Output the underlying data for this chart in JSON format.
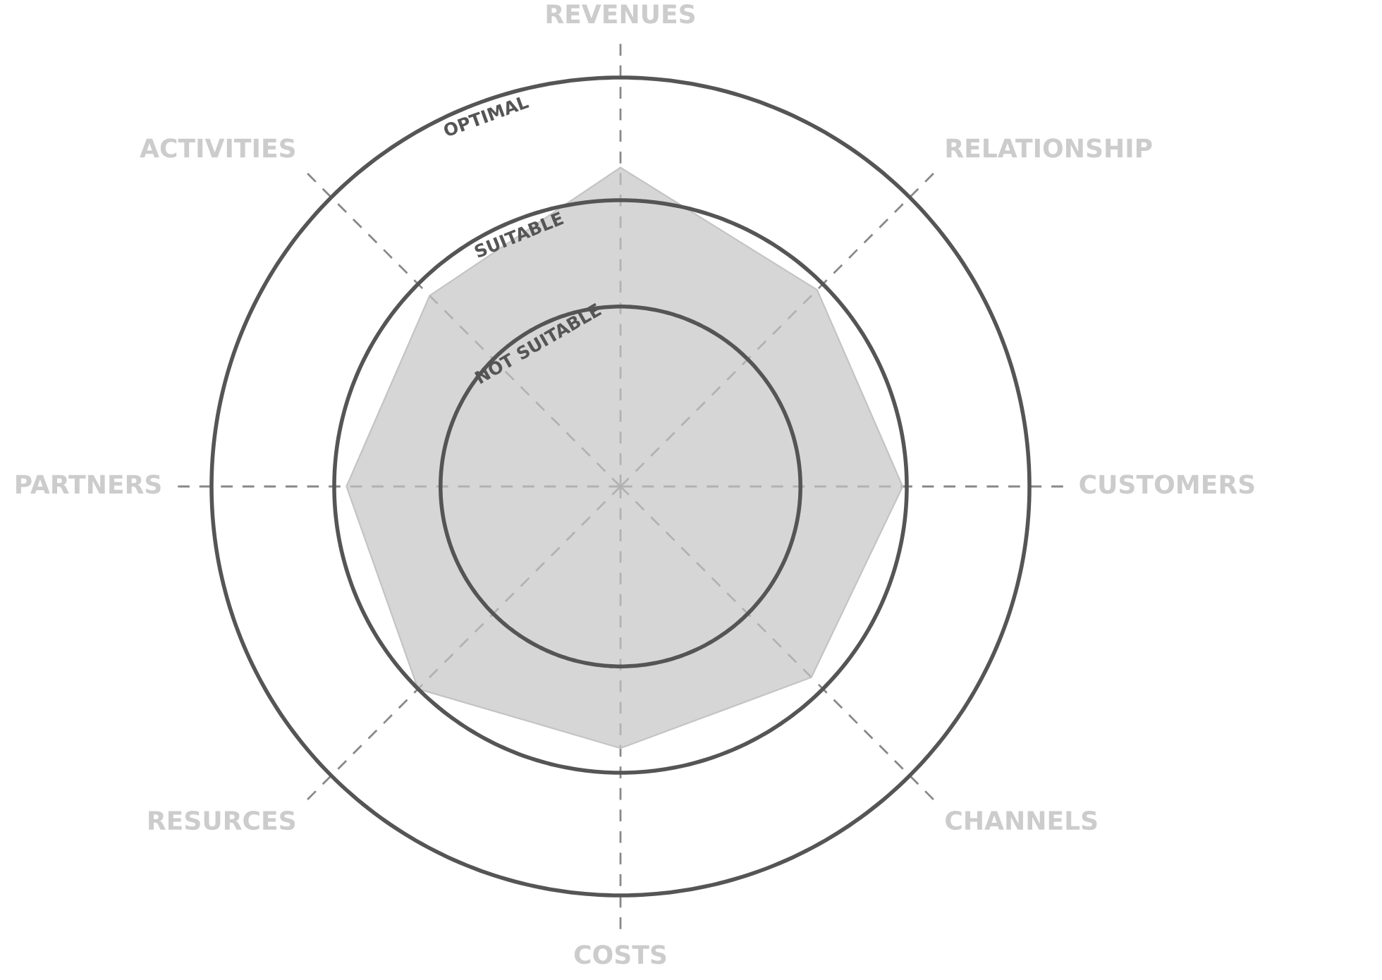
{
  "chart_data": {
    "type": "radar",
    "categories": [
      "REVENUES",
      "RELATIONSHIP",
      "CUSTOMERS",
      "CHANNELS",
      "COSTS",
      "RESURCES",
      "PARTNERS",
      "ACTIVITIES"
    ],
    "series": [
      {
        "color": "#c4c4c4",
        "values": [
          0.78,
          0.68,
          0.69,
          0.66,
          0.64,
          0.7,
          0.67,
          0.66
        ]
      }
    ],
    "ylim": [
      0,
      1
    ],
    "yticks": [
      {
        "value": 0.44,
        "label": "NOT SUITABLE"
      },
      {
        "value": 0.7,
        "label": "SUITABLE"
      },
      {
        "value": 1,
        "label": "OPTIMAL"
      }
    ],
    "grid": true
  }
}
